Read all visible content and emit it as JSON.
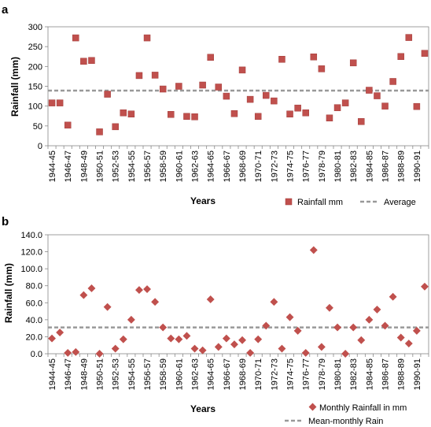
{
  "chart_data": [
    {
      "panel": "a",
      "type": "scatter",
      "marker": "square",
      "ylabel": "Rainfall (mm)",
      "xlabel": "Years",
      "ylim": [
        0,
        300
      ],
      "yticks": [
        "0",
        "50",
        "100",
        "150",
        "200",
        "250",
        "300"
      ],
      "categories": [
        "1944-45",
        "1945-46",
        "1946-47",
        "1947-48",
        "1948-49",
        "1949-50",
        "1950-51",
        "1951-52",
        "1952-53",
        "1953-54",
        "1954-55",
        "1955-56",
        "1956-57",
        "1957-58",
        "1958-59",
        "1959-60",
        "1960-61",
        "1961-62",
        "1962-63",
        "1963-64",
        "1964-65",
        "1965-66",
        "1966-67",
        "1967-68",
        "1968-69",
        "1969-70",
        "1970-71",
        "1971-72",
        "1972-73",
        "1973-74",
        "1974-75",
        "1975-76",
        "1976-77",
        "1977-78",
        "1978-79",
        "1979-80",
        "1980-81",
        "1981-82",
        "1982-83",
        "1983-84",
        "1984-85",
        "1985-86",
        "1986-87",
        "1987-88",
        "1988-89",
        "1989-90",
        "1990-91",
        "1991-92"
      ],
      "tick_labels": [
        "1944-45",
        "1946-47",
        "1948-49",
        "1950-51",
        "1952-53",
        "1954-55",
        "1956-57",
        "1958-59",
        "1960-61",
        "1962-63",
        "1964-65",
        "1966-67",
        "1968-69",
        "1970-71",
        "1972-73",
        "1974-75",
        "1976-77",
        "1978-79",
        "1980-81",
        "1982-83",
        "1984-85",
        "1986-87",
        "1988-89",
        "1990-91"
      ],
      "series": [
        {
          "name": "Rainfall mm",
          "color": "#c0504d",
          "values": [
            108,
            108,
            52,
            272,
            213,
            215,
            35,
            130,
            48,
            83,
            80,
            177,
            272,
            178,
            143,
            79,
            150,
            74,
            73,
            153,
            223,
            148,
            125,
            81,
            191,
            117,
            74,
            127,
            113,
            218,
            80,
            95,
            83,
            224,
            194,
            70,
            96,
            108,
            209,
            61,
            140,
            126,
            100,
            162,
            225,
            273,
            99,
            233
          ]
        },
        {
          "name": "Average",
          "color": "#999999",
          "type": "dashed-line",
          "value": 139
        }
      ],
      "legend": {
        "position": "bottom-right",
        "items": [
          "Rainfall mm",
          "Average"
        ]
      }
    },
    {
      "panel": "b",
      "type": "scatter",
      "marker": "diamond",
      "ylabel": "Rainfall (mm)",
      "xlabel": "Years",
      "ylim": [
        0,
        140
      ],
      "yticks": [
        "0.0",
        "20.0",
        "40.0",
        "60.0",
        "80.0",
        "100.0",
        "120.0",
        "140.0"
      ],
      "categories": [
        "1944-45",
        "1945-46",
        "1946-47",
        "1947-48",
        "1948-49",
        "1949-50",
        "1950-51",
        "1951-52",
        "1952-53",
        "1953-54",
        "1954-55",
        "1955-56",
        "1956-57",
        "1957-58",
        "1958-59",
        "1959-60",
        "1960-61",
        "1961-62",
        "1962-63",
        "1963-64",
        "1964-65",
        "1965-66",
        "1966-67",
        "1967-68",
        "1968-69",
        "1969-70",
        "1970-71",
        "1971-72",
        "1972-73",
        "1973-74",
        "1974-75",
        "1975-76",
        "1976-77",
        "1977-78",
        "1978-79",
        "1979-80",
        "1980-81",
        "1981-82",
        "1982-83",
        "1983-84",
        "1984-85",
        "1985-86",
        "1986-87",
        "1987-88",
        "1988-89",
        "1989-90",
        "1990-91",
        "1991-92"
      ],
      "tick_labels": [
        "1944-45",
        "1946-47",
        "1948-49",
        "1950-51",
        "1952-53",
        "1954-55",
        "1956-57",
        "1958-59",
        "1960-61",
        "1962-63",
        "1964-65",
        "1966-67",
        "1968-69",
        "1970-71",
        "1972-73",
        "1974-75",
        "1976-77",
        "1978-79",
        "1980-81",
        "1982-83",
        "1984-85",
        "1986-87",
        "1988-89",
        "1990-91"
      ],
      "series": [
        {
          "name": "Monthly Rainfall in mm",
          "color": "#c0504d",
          "values": [
            18,
            25,
            1,
            2,
            69,
            77,
            0,
            55,
            6,
            17,
            40,
            75,
            76,
            61,
            31,
            18,
            17,
            21,
            6,
            4,
            64,
            8,
            18,
            11,
            16,
            1,
            17,
            33,
            61,
            6,
            43,
            27,
            1,
            122,
            8,
            54,
            31,
            0,
            31,
            16,
            40,
            52,
            33,
            67,
            19,
            12,
            27,
            79
          ]
        },
        {
          "name": "Mean-monthly Rain",
          "color": "#999999",
          "type": "dashed-line",
          "value": 31
        }
      ],
      "legend": {
        "position": "bottom-right",
        "items": [
          "Monthly Rainfall in mm",
          "Mean-monthly Rain"
        ]
      }
    }
  ]
}
